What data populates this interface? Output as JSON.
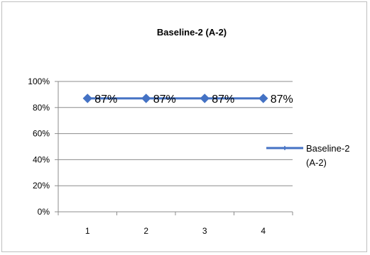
{
  "chart_data": {
    "type": "line",
    "title": "Baseline-2 (A-2)",
    "xlabel": "",
    "ylabel": "",
    "categories": [
      "1",
      "2",
      "3",
      "4"
    ],
    "series": [
      {
        "name": "Baseline-2 (A-2)",
        "legend_lines": [
          "Baseline-2",
          "(A-2)"
        ],
        "values": [
          87,
          87,
          87,
          87
        ],
        "data_labels": [
          "87%",
          "87%",
          "87%",
          "87%"
        ],
        "color": "#4472c4"
      }
    ],
    "ylim": [
      0,
      100
    ],
    "y_ticks": [
      0,
      20,
      40,
      60,
      80,
      100
    ],
    "y_tick_labels": [
      "0%",
      "20%",
      "40%",
      "60%",
      "80%",
      "100%"
    ],
    "grid": true,
    "legend": "right"
  }
}
